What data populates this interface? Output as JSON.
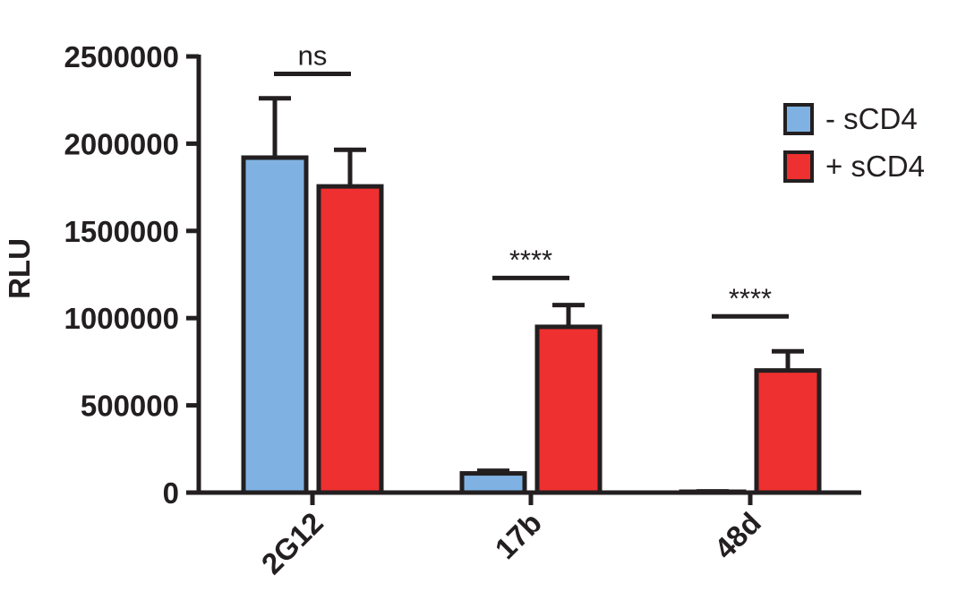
{
  "chart_data": {
    "type": "bar",
    "categories": [
      "2G12",
      "17b",
      "48d"
    ],
    "series": [
      {
        "name": "- sCD4",
        "color": "#7fb2e2",
        "values": [
          1920000,
          110000,
          5000
        ],
        "errors": [
          340000,
          15000,
          2000
        ]
      },
      {
        "name": "+ sCD4",
        "color": "#ee3030",
        "values": [
          1755000,
          950000,
          700000
        ],
        "errors": [
          210000,
          125000,
          110000
        ]
      }
    ],
    "ylabel": "RLU",
    "xlabel": "",
    "ylim": [
      0,
      2500000
    ],
    "yticks": [
      0,
      500000,
      1000000,
      1500000,
      2000000,
      2500000
    ],
    "ytick_labels": [
      "0",
      "500000",
      "1000000",
      "1500000",
      "2000000",
      "2500000"
    ],
    "significance": [
      {
        "category": "2G12",
        "label": "ns",
        "y": 2400000
      },
      {
        "category": "17b",
        "label": "****",
        "y": 1230000
      },
      {
        "category": "48d",
        "label": "****",
        "y": 1010000
      }
    ],
    "legend_position": "top-right",
    "grid": false,
    "bar_outline_color": "#231f20",
    "axis_color": "#231f20"
  }
}
